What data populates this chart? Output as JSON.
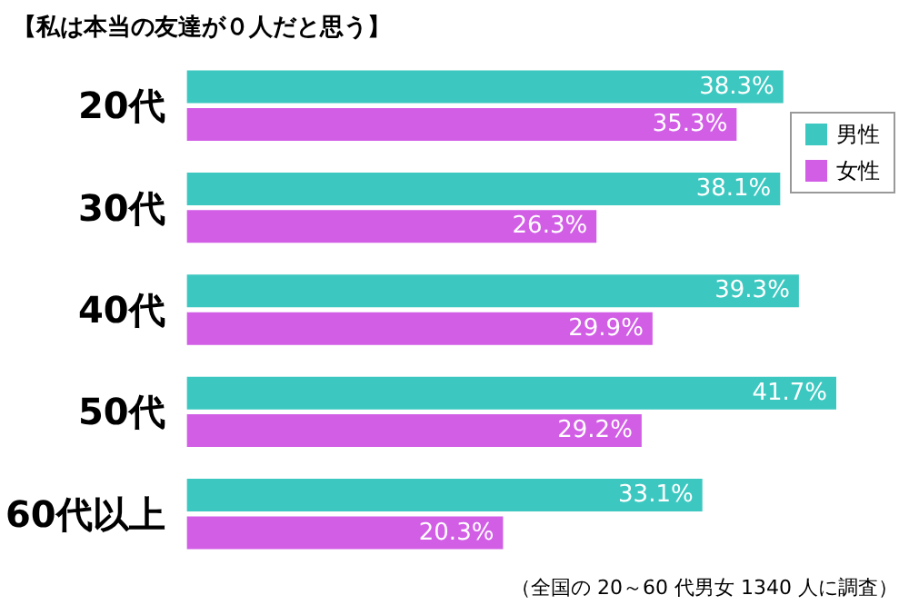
{
  "chart_data": {
    "type": "bar",
    "orientation": "horizontal",
    "title": "【私は本当の友達が０人だと思う】",
    "categories": [
      "20代",
      "30代",
      "40代",
      "50代",
      "60代以上"
    ],
    "series": [
      {
        "name": "男性",
        "color": "#3cc8c0",
        "values": [
          38.3,
          38.1,
          39.3,
          41.7,
          33.1
        ],
        "value_labels": [
          "38.3%",
          "38.1%",
          "39.3%",
          "41.7%",
          "33.1%"
        ]
      },
      {
        "name": "女性",
        "color": "#d25ee6",
        "values": [
          35.3,
          26.3,
          29.9,
          29.2,
          20.3
        ],
        "value_labels": [
          "35.3%",
          "26.3%",
          "29.9%",
          "29.2%",
          "20.3%"
        ]
      }
    ],
    "legend": "top right",
    "annotations": [
      "（全国の 20～60 代男女 1340 人に調査）"
    ]
  }
}
